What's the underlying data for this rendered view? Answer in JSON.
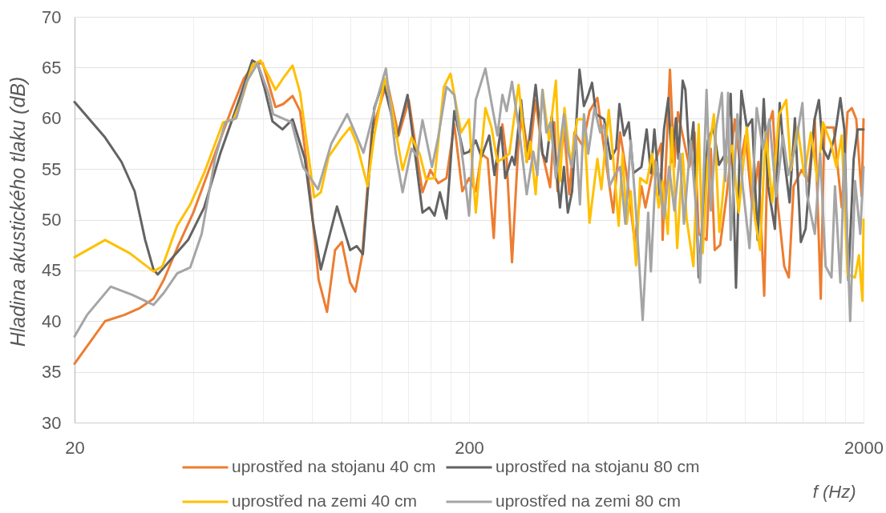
{
  "chart_data": {
    "type": "line",
    "xlabel": "f (Hz)",
    "ylabel": "Hladina akustického tlaku (dB)",
    "log": "x",
    "grid": true,
    "legend": "bottom",
    "xlim": [
      20,
      2000
    ],
    "ylim": [
      30,
      70
    ],
    "xticks": [
      20,
      {
        "value": 40,
        "label": null
      },
      {
        "value": 60,
        "label": null
      },
      {
        "value": 80,
        "label": null
      },
      {
        "value": 100,
        "label": null
      },
      {
        "value": 120,
        "label": null
      },
      {
        "value": 140,
        "label": null
      },
      {
        "value": 160,
        "label": null
      },
      {
        "value": 180,
        "label": null
      },
      200,
      {
        "value": 400,
        "label": null
      },
      {
        "value": 600,
        "label": null
      },
      {
        "value": 800,
        "label": null
      },
      {
        "value": 1000,
        "label": null
      },
      {
        "value": 1200,
        "label": null
      },
      {
        "value": 1400,
        "label": null
      },
      {
        "value": 1600,
        "label": null
      },
      {
        "value": 1800,
        "label": null
      },
      2000
    ],
    "yticks": [
      30,
      35,
      40,
      45,
      50,
      55,
      60,
      65,
      70
    ],
    "series": [
      {
        "name": "uprostřed na stojanu 40 cm",
        "color": "#ed7d31",
        "x": [
          20,
          21.5,
          23.9,
          26.7,
          29.3,
          31.7,
          33.7,
          36.4,
          40,
          44.6,
          49.8,
          53.7,
          57.2,
          60,
          64.6,
          67.6,
          71.4,
          74.6,
          78.8,
          83.1,
          87.3,
          91.5,
          95.2,
          99.9,
          103,
          107.2,
          113.3,
          120.3,
          124,
          132.6,
          140.7,
          152.4,
          159.6,
          167,
          175.3,
          183.5,
          192.3,
          200,
          208,
          215,
          223,
          231,
          237,
          243,
          249,
          257,
          267,
          273,
          284,
          295,
          307,
          321,
          329,
          335,
          348,
          359,
          370,
          388,
          404,
          423,
          440,
          464,
          483,
          502,
          526,
          547,
          560,
          587,
          614,
          619,
          646,
          663,
          677,
          696,
          724,
          746,
          764,
          800,
          820,
          839,
          866,
          900,
          943,
          973,
          1004,
          1044,
          1083,
          1120,
          1146,
          1177,
          1211,
          1259,
          1293,
          1330,
          1393,
          1448,
          1505,
          1558,
          1591,
          1680,
          1761,
          1822,
          1868,
          1917,
          1978,
          2000
        ],
        "values": [
          35.8,
          37.5,
          40.0,
          40.6,
          41.3,
          42.2,
          44.1,
          47.2,
          50.7,
          55.7,
          60.7,
          63.9,
          65.4,
          65.4,
          61.1,
          61.4,
          62.2,
          60.7,
          53.3,
          44.1,
          40.9,
          47.0,
          47.8,
          43.8,
          42.9,
          46.5,
          58.6,
          62.0,
          63.6,
          58.3,
          61.8,
          52.7,
          54.9,
          53.6,
          54.1,
          59.4,
          52.8,
          54.1,
          52.8,
          56.5,
          56.0,
          48.2,
          57.0,
          59.4,
          56.0,
          45.8,
          57.8,
          60.2,
          56.0,
          61.8,
          56.5,
          53.2,
          59.6,
          52.8,
          59.1,
          52.5,
          58.6,
          57.3,
          60.7,
          62.0,
          57.0,
          50.7,
          58.6,
          54.4,
          47.8,
          53.3,
          51.2,
          55.2,
          57.5,
          48.0,
          64.8,
          55.2,
          60.6,
          58.3,
          55.2,
          58.6,
          48.6,
          48.0,
          57.0,
          47.0,
          47.5,
          52.5,
          59.9,
          55.4,
          58.3,
          51.2,
          55.7,
          42.5,
          59.1,
          60.7,
          51.7,
          45.4,
          44.3,
          53.3,
          54.9,
          53.8,
          59.9,
          42.2,
          59.1,
          59.1,
          51.2,
          60.6,
          61.0,
          59.9,
          52.3,
          59.9
        ]
      },
      {
        "name": "uprostřed na stojanu 80 cm",
        "color": "#636363",
        "x": [
          20,
          23.9,
          26.3,
          28.4,
          30.2,
          31.7,
          32.5,
          35.3,
          38.8,
          42.6,
          46.8,
          51.4,
          56.4,
          58.2,
          60.6,
          63.5,
          67.3,
          71.4,
          76.7,
          80.3,
          84.2,
          92.5,
          99.9,
          103.8,
          107.6,
          115,
          121.2,
          131.3,
          139.7,
          152.4,
          158.5,
          163.5,
          168.7,
          175.3,
          183.5,
          193.8,
          200,
          208,
          215,
          225,
          232,
          241,
          247,
          257,
          261,
          271,
          280,
          295,
          307,
          314,
          324,
          340,
          348,
          356,
          365,
          381,
          391,
          401,
          410,
          420,
          440,
          457,
          472,
          481,
          494,
          508,
          522,
          547,
          564,
          578,
          590,
          609,
          624,
          640,
          653,
          669,
          679,
          696,
          707,
          724,
          741,
          764,
          788,
          806,
          832,
          860,
          893,
          921,
          950,
          980,
          1012,
          1044,
          1078,
          1117,
          1146,
          1192,
          1226,
          1259,
          1299,
          1340,
          1387,
          1426,
          1501,
          1541,
          1578,
          1628,
          1693,
          1747,
          1788,
          1830,
          1888,
          1932,
          2000
        ],
        "values": [
          61.6,
          58.1,
          55.7,
          52.8,
          48.0,
          45.1,
          44.6,
          46.2,
          48.0,
          51.2,
          56.5,
          61.0,
          65.7,
          65.4,
          63.0,
          59.7,
          58.9,
          59.9,
          56.0,
          49.9,
          45.1,
          51.3,
          47.0,
          47.4,
          46.6,
          61.0,
          63.6,
          58.1,
          62.3,
          50.7,
          51.2,
          50.4,
          52.7,
          50.1,
          60.7,
          56.5,
          56.7,
          57.8,
          56.2,
          58.3,
          54.4,
          59.1,
          54.1,
          56.2,
          55.4,
          61.8,
          55.7,
          63.3,
          56.5,
          55.7,
          60.2,
          51.2,
          55.2,
          50.7,
          52.8,
          64.8,
          61.2,
          62.3,
          63.5,
          60.4,
          59.9,
          56.0,
          57.0,
          61.4,
          58.3,
          59.6,
          54.6,
          55.2,
          58.9,
          54.6,
          58.9,
          52.3,
          58.9,
          62.0,
          55.7,
          60.0,
          56.0,
          63.7,
          62.8,
          56.0,
          59.6,
          44.3,
          52.3,
          57.8,
          59.1,
          55.4,
          56.5,
          62.4,
          43.3,
          62.7,
          59.1,
          59.9,
          48.0,
          61.9,
          53.3,
          49.1,
          61.5,
          56.0,
          51.7,
          60.0,
          47.8,
          49.1,
          59.8,
          61.8,
          57.0,
          56.0,
          58.3,
          62.0,
          58.9,
          44.0,
          56.0,
          58.9,
          58.9
        ]
      },
      {
        "name": "uprostřed na zemi 40 cm",
        "color": "#ffc000",
        "x": [
          20,
          23.9,
          27.6,
          31.7,
          33.4,
          36.4,
          39.3,
          42.6,
          47.6,
          50.6,
          53,
          56.4,
          59.2,
          62.2,
          64.6,
          68,
          71.4,
          74.6,
          78.6,
          81,
          84.2,
          88.1,
          95.2,
          99.9,
          103.8,
          110.6,
          115,
          122.2,
          126.3,
          135.7,
          142.9,
          149.9,
          155.6,
          163.5,
          172.7,
          179.5,
          190.9,
          200,
          208,
          220,
          228,
          236,
          243,
          253,
          267,
          280,
          286,
          295,
          307,
          319,
          332,
          340,
          349,
          362,
          376,
          391,
          404,
          423,
          433,
          452,
          464,
          479,
          490,
          502,
          514,
          530,
          543,
          564,
          582,
          605,
          619,
          638,
          653,
          674,
          696,
          712,
          741,
          764,
          782,
          806,
          835,
          862,
          893,
          929,
          965,
          1012,
          1061,
          1094,
          1129,
          1174,
          1220,
          1274,
          1309,
          1361,
          1415,
          1471,
          1529,
          1578,
          1654,
          1707,
          1761,
          1822,
          1903,
          1947,
          1987,
          2000
        ],
        "values": [
          46.3,
          48.0,
          46.7,
          44.9,
          45.4,
          49.4,
          51.5,
          54.6,
          59.6,
          59.9,
          61.8,
          65.2,
          65.7,
          64.1,
          62.8,
          64.1,
          65.2,
          62.5,
          55.9,
          52.2,
          52.7,
          56.2,
          58.1,
          59.1,
          57.5,
          53.3,
          58.3,
          63.9,
          61.8,
          54.9,
          58.1,
          56.5,
          54.0,
          54.1,
          63.1,
          64.4,
          58.6,
          59.9,
          50.7,
          61.0,
          59.1,
          55.7,
          56.0,
          56.5,
          63.3,
          55.7,
          57.7,
          52.5,
          62.8,
          57.8,
          63.7,
          53.8,
          61.0,
          55.4,
          59.9,
          59.9,
          49.7,
          56.0,
          53.0,
          60.8,
          56.0,
          49.4,
          56.5,
          49.6,
          52.8,
          45.5,
          54.1,
          53.6,
          56.5,
          51.2,
          53.8,
          48.6,
          59.1,
          47.2,
          56.5,
          50.1,
          45.4,
          59.4,
          46.7,
          56.0,
          60.4,
          48.8,
          55.2,
          57.3,
          50.7,
          59.1,
          50.1,
          47.0,
          58.6,
          51.7,
          60.3,
          61.8,
          54.9,
          59.1,
          54.4,
          58.6,
          53.8,
          59.6,
          57.5,
          55.2,
          58.3,
          44.6,
          44.3,
          46.5,
          42.0,
          50.0
        ]
      },
      {
        "name": "uprostřed na zemi 80 cm",
        "color": "#a5a5a5",
        "x": [
          20,
          21.5,
          24.7,
          28,
          31.7,
          33.7,
          36.4,
          39.3,
          42,
          45.4,
          48.2,
          51.4,
          54.6,
          58.2,
          62.2,
          63.7,
          71,
          75.9,
          82.8,
          89.5,
          98.2,
          108,
          116.8,
          123.1,
          130.4,
          135.7,
          142.9,
          147.5,
          152.4,
          161.1,
          167,
          175.3,
          183.5,
          193.8,
          200,
          208,
          220,
          228,
          236,
          243,
          249,
          257,
          269,
          280,
          291,
          298,
          307,
          314,
          322,
          332,
          348,
          356,
          365,
          373,
          382,
          391,
          401,
          416,
          430,
          440,
          454,
          468,
          483,
          498,
          514,
          530,
          551,
          569,
          578,
          596,
          605,
          624,
          643,
          663,
          685,
          701,
          729,
          752,
          770,
          800,
          820,
          846,
          875,
          893,
          907,
          921,
          958,
          988,
          1028,
          1072,
          1111,
          1155,
          1201,
          1249,
          1289,
          1340,
          1400,
          1437,
          1505,
          1553,
          1603,
          1659,
          1693,
          1747,
          1788,
          1850,
          1903,
          1962,
          2000
        ],
        "values": [
          38.5,
          40.6,
          43.4,
          42.6,
          41.6,
          42.8,
          44.7,
          45.3,
          48.6,
          56.0,
          59.6,
          60.0,
          63.6,
          65.4,
          62.3,
          60.4,
          59.6,
          55.2,
          53.0,
          57.5,
          60.4,
          56.6,
          61.8,
          64.9,
          56.5,
          52.7,
          57.0,
          56.3,
          59.8,
          55.2,
          58.1,
          63.1,
          62.3,
          55.2,
          50.4,
          61.8,
          64.9,
          61.5,
          58.3,
          62.3,
          60.7,
          63.6,
          58.3,
          52.5,
          56.7,
          54.4,
          62.8,
          58.6,
          59.6,
          54.1,
          60.4,
          56.7,
          55.2,
          58.3,
          51.5,
          60.4,
          56.5,
          61.0,
          58.6,
          59.4,
          53.3,
          54.4,
          55.2,
          49.6,
          57.8,
          50.7,
          40.1,
          50.7,
          44.9,
          55.7,
          54.4,
          50.1,
          55.2,
          50.9,
          56.5,
          49.6,
          57.8,
          51.2,
          43.8,
          62.8,
          50.9,
          59.1,
          62.5,
          53.8,
          62.5,
          48.0,
          60.4,
          53.3,
          47.2,
          61.0,
          57.0,
          59.9,
          52.3,
          58.3,
          54.4,
          57.0,
          61.5,
          52.5,
          48.6,
          56.5,
          45.4,
          44.3,
          53.3,
          43.8,
          56.5,
          40.0,
          53.8,
          48.6,
          55.2
        ]
      }
    ]
  }
}
